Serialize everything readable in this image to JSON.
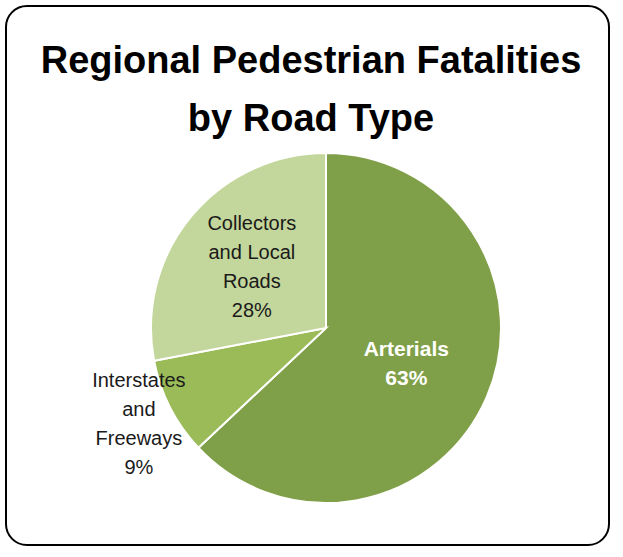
{
  "chart_data": {
    "type": "pie",
    "title": "Regional Pedestrian Fatalities by Road Type",
    "categories": [
      "Arterials",
      "Interstates and Freeways",
      "Collectors and Local Roads"
    ],
    "values": [
      63,
      9,
      28
    ],
    "value_labels": [
      "63%",
      "9%",
      "28%"
    ],
    "colors": [
      "#7f9f48",
      "#9bbb59",
      "#c3d69b"
    ],
    "data_labels": true
  }
}
